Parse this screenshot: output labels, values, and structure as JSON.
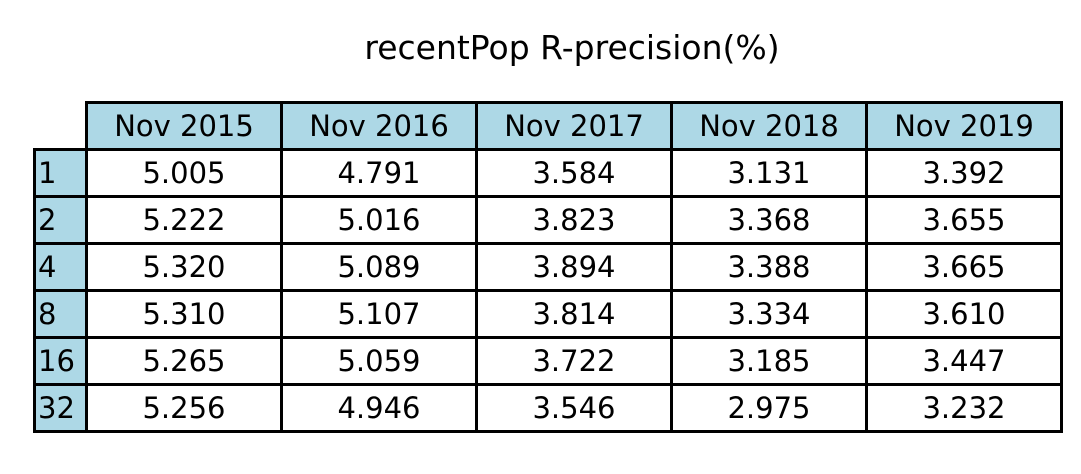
{
  "chart_data": {
    "type": "table",
    "title": "recentPop R-precision(%)",
    "header_color": "#add8e6",
    "columns": [
      "Nov 2015",
      "Nov 2016",
      "Nov 2017",
      "Nov 2018",
      "Nov 2019"
    ],
    "rows": [
      {
        "label": "1",
        "values": [
          "5.005",
          "4.791",
          "3.584",
          "3.131",
          "3.392"
        ]
      },
      {
        "label": "2",
        "values": [
          "5.222",
          "5.016",
          "3.823",
          "3.368",
          "3.655"
        ]
      },
      {
        "label": "4",
        "values": [
          "5.320",
          "5.089",
          "3.894",
          "3.388",
          "3.665"
        ]
      },
      {
        "label": "8",
        "values": [
          "5.310",
          "5.107",
          "3.814",
          "3.334",
          "3.610"
        ]
      },
      {
        "label": "16",
        "values": [
          "5.265",
          "5.059",
          "3.722",
          "3.185",
          "3.447"
        ]
      },
      {
        "label": "32",
        "values": [
          "5.256",
          "4.946",
          "3.546",
          "2.975",
          "3.232"
        ]
      }
    ]
  }
}
